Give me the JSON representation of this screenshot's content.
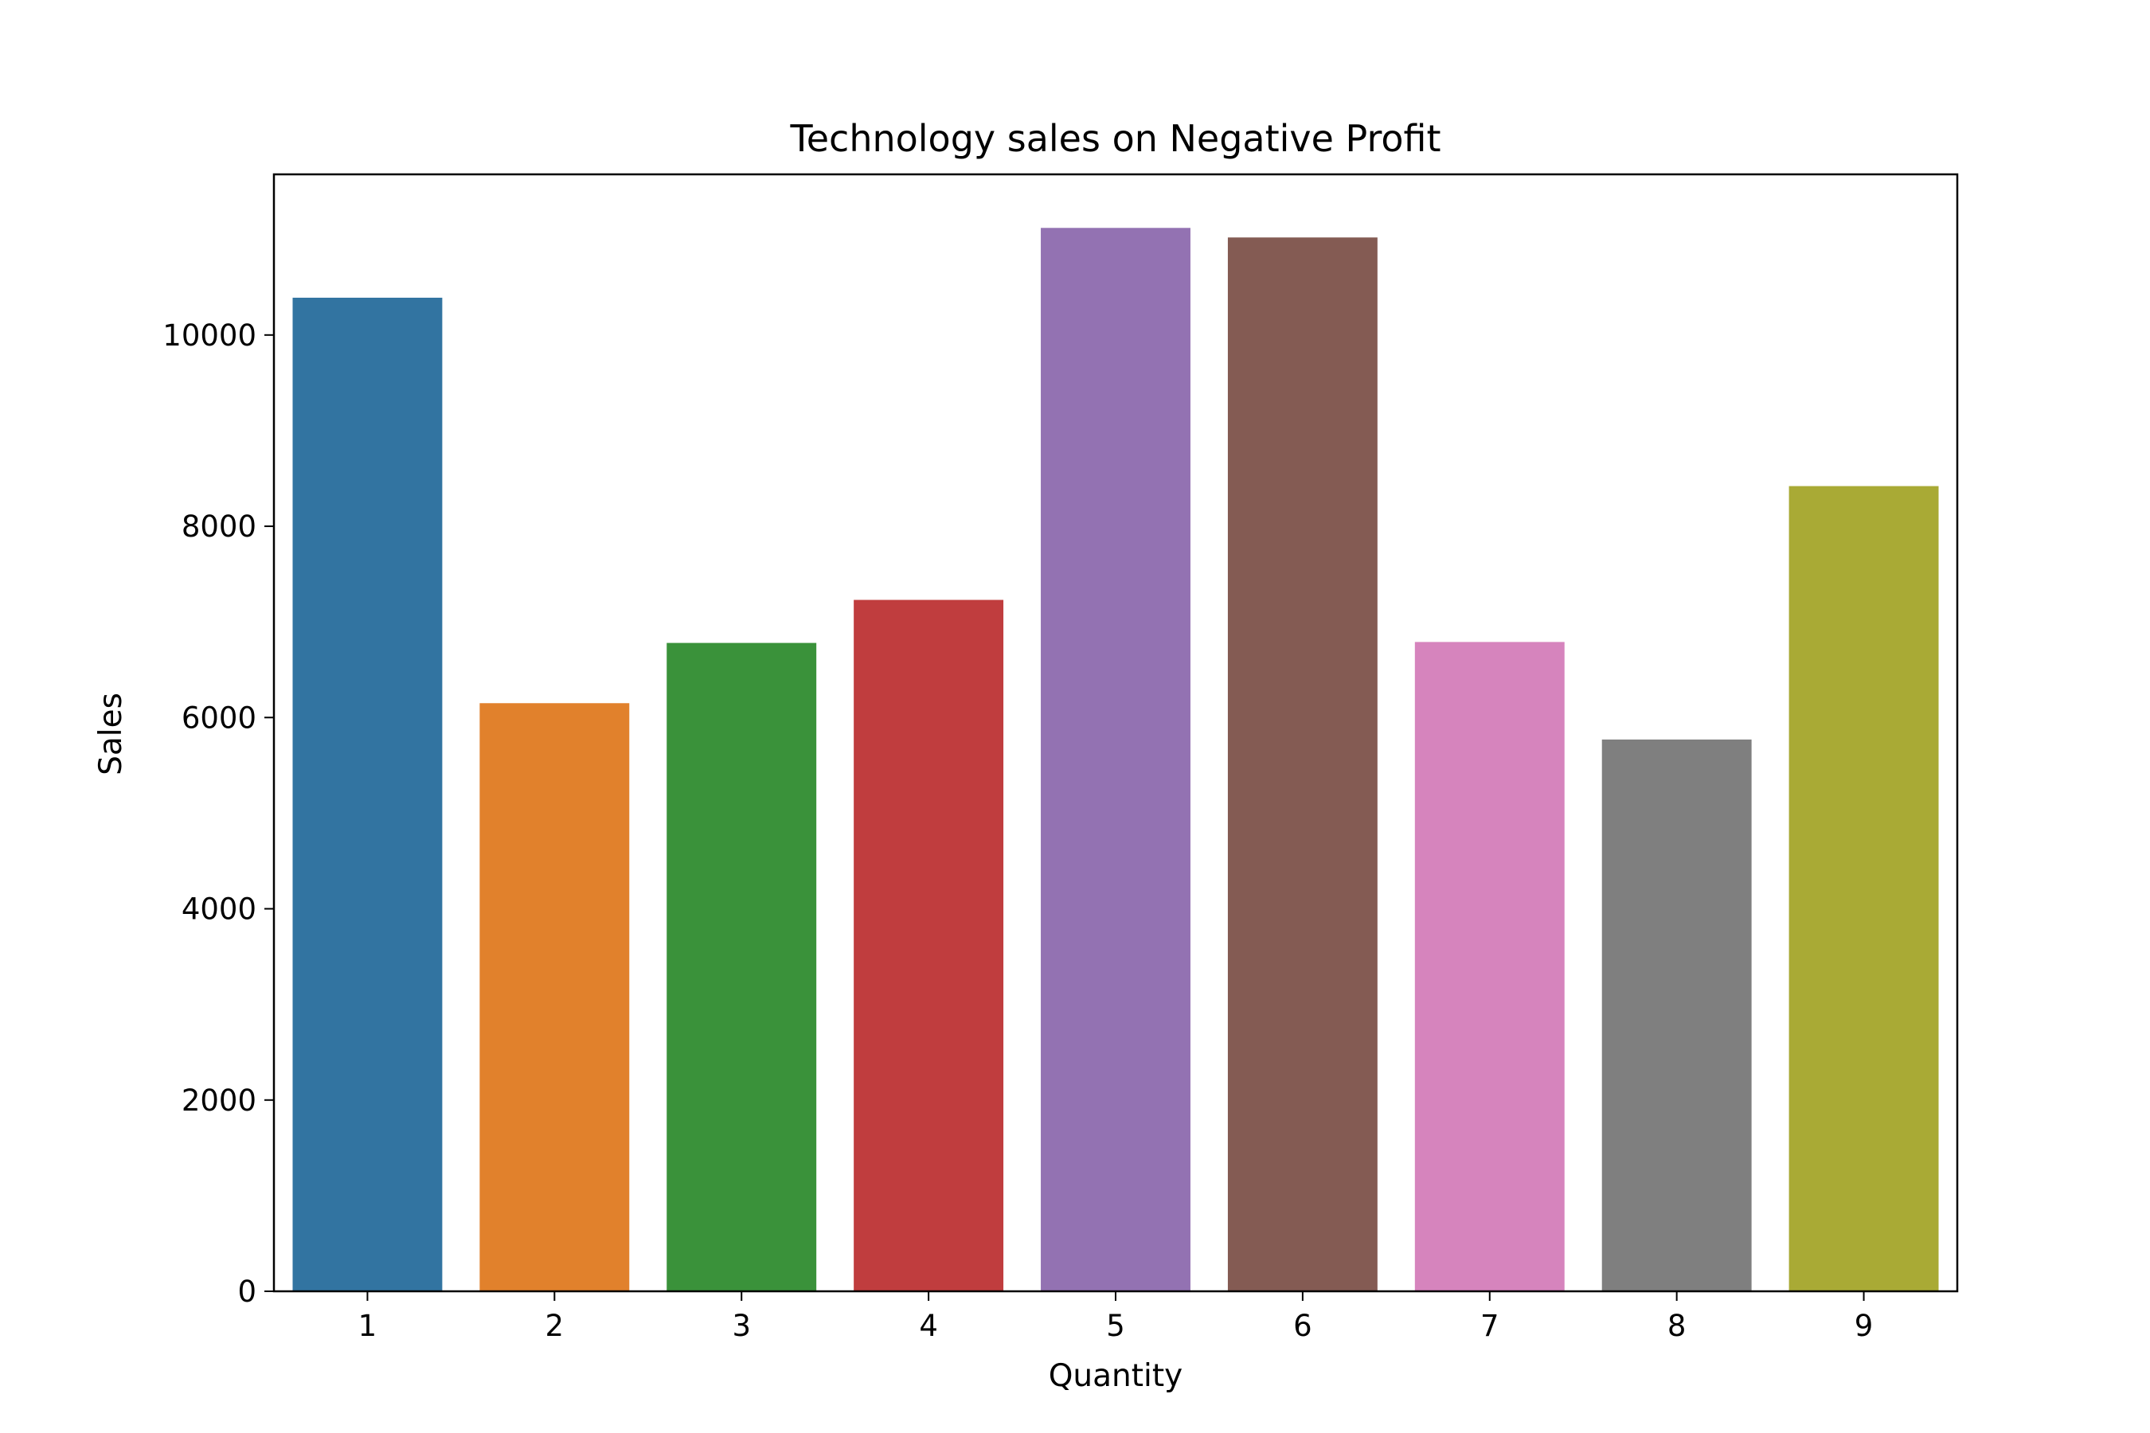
{
  "chart_data": {
    "type": "bar",
    "title": "Technology sales on Negative Profit",
    "xlabel": "Quantity",
    "ylabel": "Sales",
    "categories": [
      "1",
      "2",
      "3",
      "4",
      "5",
      "6",
      "7",
      "8",
      "9"
    ],
    "values": [
      10390,
      6150,
      6780,
      7230,
      11120,
      11020,
      6790,
      5770,
      8420
    ],
    "colors": [
      "#3274a1",
      "#e1812c",
      "#3a923a",
      "#c03d3e",
      "#9372b2",
      "#845b53",
      "#d684bd",
      "#7f7f7f",
      "#a9aa35"
    ],
    "ylim": [
      0,
      11680
    ],
    "yticks": [
      0,
      2000,
      4000,
      6000,
      8000,
      10000
    ],
    "ytick_labels": [
      "0",
      "2000",
      "4000",
      "6000",
      "8000",
      "10000"
    ],
    "grid": false,
    "legend": "none"
  }
}
